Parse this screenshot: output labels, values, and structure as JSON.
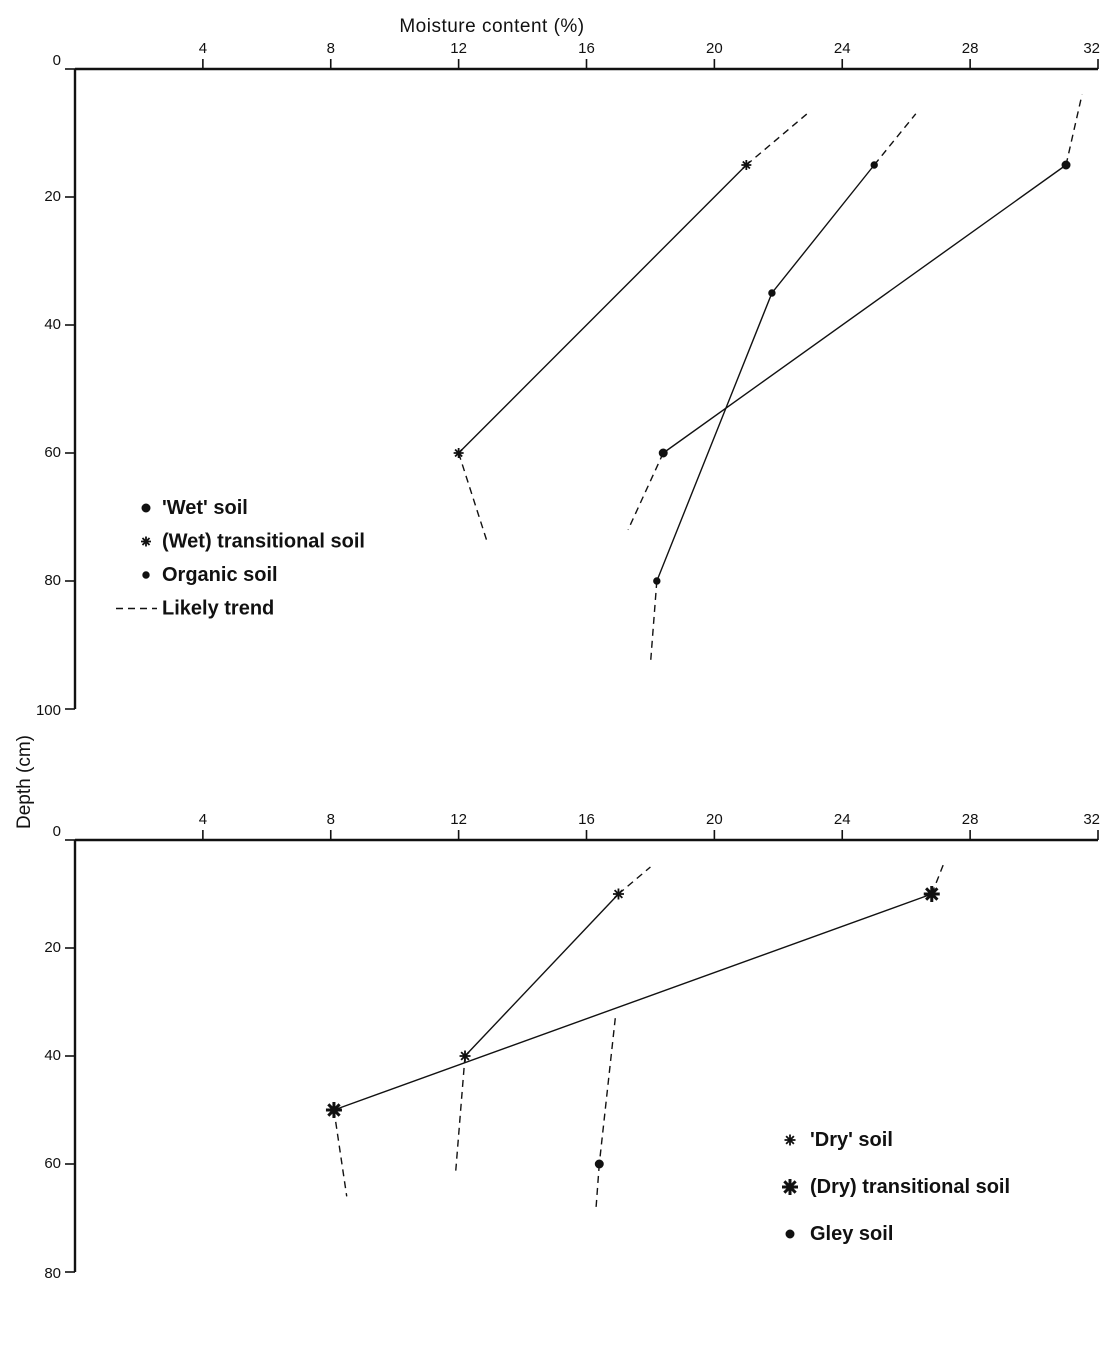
{
  "chart_data": [
    {
      "type": "line",
      "panel": "top",
      "xlabel": "Moisture content (%)",
      "ylabel": "Depth (cm)",
      "xlim": [
        0,
        32
      ],
      "ylim": [
        0,
        100
      ],
      "x_ticks": [
        "4",
        "8",
        "12",
        "16",
        "20",
        "24",
        "28",
        "32"
      ],
      "y_ticks": [
        "0",
        "20",
        "40",
        "60",
        "80",
        "100"
      ],
      "series": [
        {
          "name": "'Wet' soil",
          "marker": "dot",
          "points": [
            {
              "moisture": 31.0,
              "depth": 15
            },
            {
              "moisture": 18.4,
              "depth": 60
            }
          ],
          "trend": [
            [
              {
                "moisture": 31.0,
                "depth": 15
              },
              {
                "moisture": 31.5,
                "depth": 4
              }
            ],
            [
              {
                "moisture": 18.4,
                "depth": 60
              },
              {
                "moisture": 17.3,
                "depth": 72
              }
            ]
          ]
        },
        {
          "name": "(Wet) transitional soil",
          "marker": "asterisk",
          "points": [
            {
              "moisture": 21.0,
              "depth": 15
            },
            {
              "moisture": 12.0,
              "depth": 60
            }
          ],
          "trend": [
            [
              {
                "moisture": 21.0,
                "depth": 15
              },
              {
                "moisture": 22.9,
                "depth": 7
              }
            ],
            [
              {
                "moisture": 12.0,
                "depth": 60
              },
              {
                "moisture": 12.9,
                "depth": 74
              }
            ]
          ]
        },
        {
          "name": "Organic soil",
          "marker": "small-dot",
          "points": [
            {
              "moisture": 25.0,
              "depth": 15
            },
            {
              "moisture": 21.8,
              "depth": 35
            },
            {
              "moisture": 18.2,
              "depth": 80
            }
          ],
          "trend": [
            [
              {
                "moisture": 25.0,
                "depth": 15
              },
              {
                "moisture": 26.3,
                "depth": 7
              }
            ],
            [
              {
                "moisture": 18.2,
                "depth": 80
              },
              {
                "moisture": 18.0,
                "depth": 93
              }
            ]
          ]
        }
      ],
      "legend": {
        "position": "lower-left",
        "entries": [
          "'Wet' soil",
          "(Wet) transitional soil",
          "Organic soil",
          "Likely trend"
        ]
      }
    },
    {
      "type": "line",
      "panel": "bottom",
      "xlim": [
        0,
        32
      ],
      "ylim": [
        0,
        80
      ],
      "x_ticks": [
        "4",
        "8",
        "12",
        "16",
        "20",
        "24",
        "28",
        "32"
      ],
      "y_ticks": [
        "0",
        "20",
        "40",
        "60",
        "80"
      ],
      "series": [
        {
          "name": "'Dry' soil",
          "marker": "small-asterisk",
          "points": [
            {
              "moisture": 17.0,
              "depth": 10
            },
            {
              "moisture": 12.2,
              "depth": 40
            }
          ],
          "trend": [
            [
              {
                "moisture": 17.0,
                "depth": 10
              },
              {
                "moisture": 18.0,
                "depth": 5
              }
            ],
            [
              {
                "moisture": 12.2,
                "depth": 40
              },
              {
                "moisture": 11.9,
                "depth": 62
              }
            ]
          ]
        },
        {
          "name": "(Dry) transitional soil",
          "marker": "big-asterisk",
          "points": [
            {
              "moisture": 26.8,
              "depth": 10
            },
            {
              "moisture": 8.1,
              "depth": 50
            }
          ],
          "trend": [
            [
              {
                "moisture": 26.8,
                "depth": 10
              },
              {
                "moisture": 27.2,
                "depth": 4
              }
            ],
            [
              {
                "moisture": 8.1,
                "depth": 50
              },
              {
                "moisture": 8.5,
                "depth": 66
              }
            ]
          ]
        },
        {
          "name": "Gley soil",
          "marker": "dot",
          "points": [
            {
              "moisture": 16.4,
              "depth": 60
            }
          ],
          "trend": [
            [
              {
                "moisture": 16.9,
                "depth": 33
              },
              {
                "moisture": 16.4,
                "depth": 60
              }
            ],
            [
              {
                "moisture": 16.4,
                "depth": 60
              },
              {
                "moisture": 16.3,
                "depth": 68
              }
            ]
          ]
        }
      ],
      "legend": {
        "position": "lower-right",
        "entries": [
          "'Dry' soil",
          "(Dry) transitional soil",
          "Gley soil"
        ]
      }
    }
  ]
}
